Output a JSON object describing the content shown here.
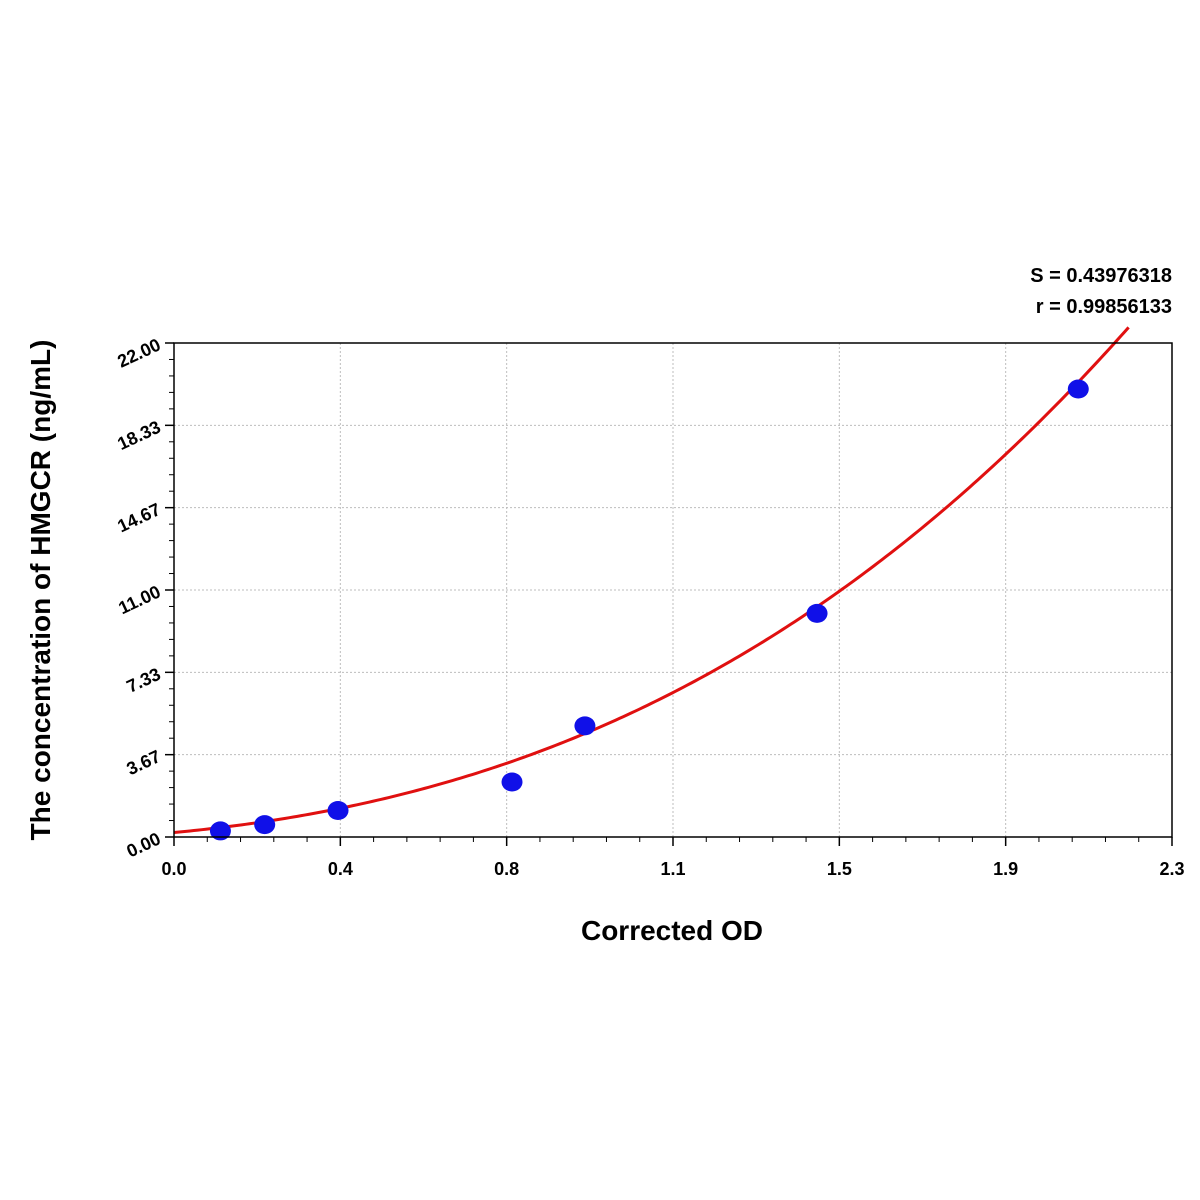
{
  "chart_data": {
    "type": "scatter",
    "title": "",
    "xlabel": "Corrected OD",
    "ylabel": "The concentration of HMGCR (ng/mL)",
    "xlim": [
      0.0,
      2.3
    ],
    "ylim": [
      0.0,
      22.0
    ],
    "x_ticks": [
      "0.0",
      "0.4",
      "0.8",
      "1.1",
      "1.5",
      "1.9",
      "2.3"
    ],
    "y_ticks": [
      "0.00",
      "3.67",
      "7.33",
      "11.00",
      "14.67",
      "18.33",
      "22.00"
    ],
    "grid": true,
    "stats": {
      "s_label": "S = 0.43976318",
      "r_label": "r = 0.99856133"
    },
    "series": [
      {
        "kind": "points",
        "color": "#1010e8",
        "x": [
          0.107,
          0.209,
          0.378,
          0.779,
          0.947,
          1.482,
          2.084
        ],
        "y": [
          0.27,
          0.55,
          1.18,
          2.45,
          4.95,
          9.96,
          19.95
        ]
      },
      {
        "kind": "fit-curve",
        "color": "#e01010",
        "fit": "cubic",
        "coefficients": [
          0.2,
          1.8,
          2.4,
          0.65
        ],
        "x_range": [
          0.0,
          2.2
        ]
      }
    ]
  }
}
